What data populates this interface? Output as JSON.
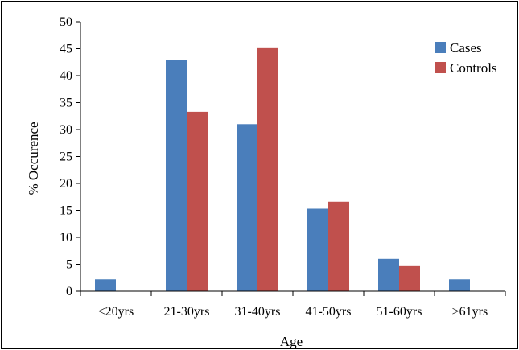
{
  "chart_data": {
    "type": "bar",
    "title": "",
    "xlabel": "Age",
    "ylabel": "% Occurence",
    "ylim": [
      0,
      50
    ],
    "yticks": [
      0,
      5,
      10,
      15,
      20,
      25,
      30,
      35,
      40,
      45,
      50
    ],
    "categories": [
      "≤20yrs",
      "21-30yrs",
      "31-40yrs",
      "41-50yrs",
      "51-60yrs",
      "≥61yrs"
    ],
    "series": [
      {
        "name": "Cases",
        "color": "#4a7ebb",
        "values": [
          2.2,
          42.9,
          31.0,
          15.3,
          6.0,
          2.2
        ]
      },
      {
        "name": "Controls",
        "color": "#c0504d",
        "values": [
          0,
          33.3,
          45.1,
          16.6,
          4.8,
          0
        ]
      }
    ],
    "legend_position": "top-right",
    "grid": false
  }
}
